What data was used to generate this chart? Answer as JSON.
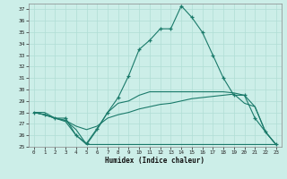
{
  "xlabel": "Humidex (Indice chaleur)",
  "bg_color": "#cceee8",
  "grid_color": "#b0ddd5",
  "line_color": "#1a7a6a",
  "xlim": [
    -0.5,
    23.5
  ],
  "ylim": [
    25,
    37.5
  ],
  "yticks": [
    25,
    26,
    27,
    28,
    29,
    30,
    31,
    32,
    33,
    34,
    35,
    36,
    37
  ],
  "xticks": [
    0,
    1,
    2,
    3,
    4,
    5,
    6,
    7,
    8,
    9,
    10,
    11,
    12,
    13,
    14,
    15,
    16,
    17,
    18,
    19,
    20,
    21,
    22,
    23
  ],
  "series": [
    {
      "x": [
        0,
        1,
        2,
        3,
        4,
        5,
        6,
        7,
        8,
        9,
        10,
        11,
        12,
        13,
        14,
        15,
        16,
        17,
        18,
        19,
        20,
        21,
        22,
        23
      ],
      "y": [
        28.0,
        27.8,
        27.5,
        27.5,
        26.0,
        25.3,
        26.6,
        28.0,
        29.3,
        31.2,
        33.5,
        34.3,
        35.3,
        35.3,
        37.3,
        36.3,
        35.0,
        33.0,
        31.0,
        29.5,
        29.5,
        27.5,
        26.3,
        25.2
      ],
      "marker": "+"
    },
    {
      "x": [
        0,
        1,
        2,
        3,
        4,
        5,
        6,
        7,
        8,
        9,
        10,
        11,
        12,
        13,
        14,
        15,
        16,
        17,
        18,
        19,
        20,
        21,
        22,
        23
      ],
      "y": [
        28.0,
        28.0,
        27.5,
        27.2,
        26.0,
        25.2,
        26.5,
        28.0,
        28.8,
        29.0,
        29.5,
        29.8,
        29.8,
        29.8,
        29.8,
        29.8,
        29.8,
        29.8,
        29.8,
        29.7,
        29.5,
        28.5,
        26.3,
        25.2
      ],
      "marker": null
    },
    {
      "x": [
        0,
        1,
        2,
        3,
        4,
        5,
        6,
        7,
        8,
        9,
        10,
        11,
        12,
        13,
        14,
        15,
        16,
        17,
        18,
        19,
        20,
        21,
        22,
        23
      ],
      "y": [
        28.0,
        27.8,
        27.5,
        27.3,
        26.8,
        26.5,
        26.8,
        27.5,
        27.8,
        28.0,
        28.3,
        28.5,
        28.7,
        28.8,
        29.0,
        29.2,
        29.3,
        29.4,
        29.5,
        29.6,
        28.8,
        28.5,
        26.3,
        25.2
      ],
      "marker": null
    },
    {
      "x": [
        0,
        1,
        2,
        3,
        4,
        5,
        6,
        7,
        8,
        9,
        10,
        11,
        12,
        13,
        14,
        15,
        16,
        17,
        18,
        19,
        20,
        21,
        22,
        23
      ],
      "y": [
        28.0,
        27.8,
        27.5,
        27.3,
        26.5,
        25.2,
        25.2,
        25.2,
        25.2,
        25.2,
        25.2,
        25.2,
        25.2,
        25.2,
        25.2,
        25.2,
        25.2,
        25.2,
        25.2,
        25.2,
        25.2,
        25.2,
        25.2,
        25.2
      ],
      "marker": null
    }
  ]
}
